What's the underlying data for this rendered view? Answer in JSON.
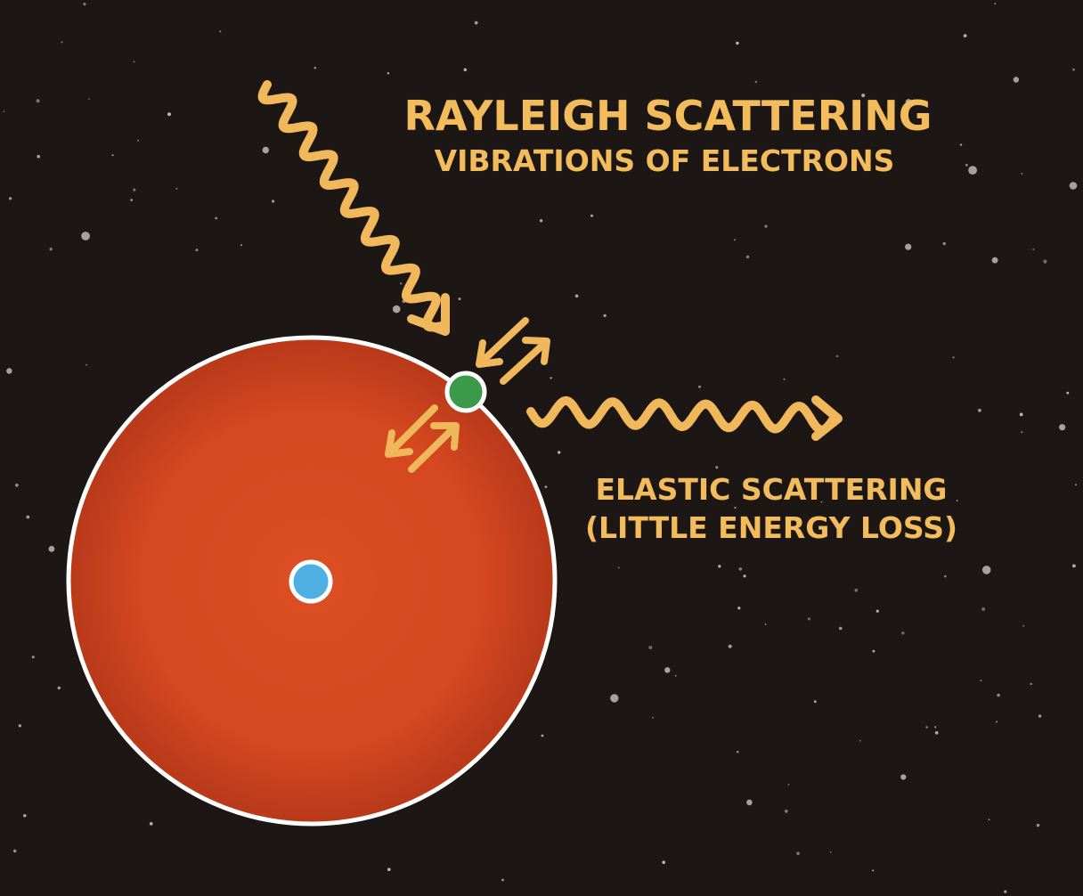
{
  "title": "RAYLEIGH SCATTERING",
  "subtitle": "VIBRATIONS OF ELECTRONS",
  "scatter_label_line1": "ELASTIC SCATTERING",
  "scatter_label_line2": "(LITTLE ENERGY LOSS)",
  "colors": {
    "background": "#1c1614",
    "text_accent": "#f2bb5c",
    "arrow": "#f0b85a",
    "atom_fill": "#d84b22",
    "atom_edge": "#ffffff",
    "nucleus": "#4faee2",
    "electron": "#3a9a4a"
  }
}
